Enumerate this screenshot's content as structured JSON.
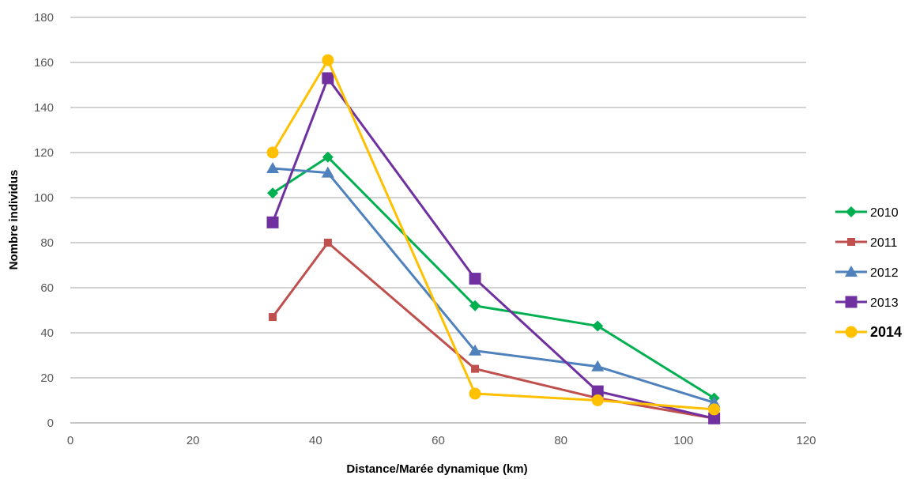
{
  "chart_data": {
    "type": "line",
    "xlabel": "Distance/Marée dynamique (km)",
    "ylabel": "Nombre individus",
    "xlim": [
      0,
      120
    ],
    "ylim": [
      0,
      180
    ],
    "xticks": [
      0,
      20,
      40,
      60,
      80,
      100,
      120
    ],
    "yticks": [
      0,
      20,
      40,
      60,
      80,
      100,
      120,
      140,
      160,
      180
    ],
    "grid": "horizontal",
    "legend_position": "right",
    "series": [
      {
        "name": "2010",
        "color": "#00b050",
        "marker": "diamond",
        "bold": false,
        "points": [
          [
            33,
            102
          ],
          [
            42,
            118
          ],
          [
            66,
            52
          ],
          [
            86,
            43
          ],
          [
            105,
            11
          ]
        ]
      },
      {
        "name": "2011",
        "color": "#c0504d",
        "marker": "small-square",
        "bold": false,
        "points": [
          [
            33,
            47
          ],
          [
            42,
            80
          ],
          [
            66,
            24
          ],
          [
            86,
            11
          ],
          [
            105,
            2
          ]
        ]
      },
      {
        "name": "2012",
        "color": "#4f81bd",
        "marker": "triangle",
        "bold": false,
        "points": [
          [
            33,
            113
          ],
          [
            42,
            111
          ],
          [
            66,
            32
          ],
          [
            86,
            25
          ],
          [
            105,
            9
          ]
        ]
      },
      {
        "name": "2013",
        "color": "#7030a0",
        "marker": "square",
        "bold": false,
        "points": [
          [
            33,
            89
          ],
          [
            42,
            153
          ],
          [
            66,
            64
          ],
          [
            86,
            14
          ],
          [
            105,
            2
          ]
        ]
      },
      {
        "name": "2014",
        "color": "#ffc000",
        "marker": "circle",
        "bold": true,
        "points": [
          [
            33,
            120
          ],
          [
            42,
            161
          ],
          [
            66,
            13
          ],
          [
            86,
            10
          ],
          [
            105,
            6
          ]
        ]
      }
    ]
  }
}
